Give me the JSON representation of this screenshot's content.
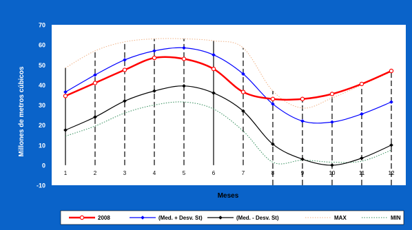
{
  "chart_data": {
    "type": "line",
    "xlabel": "Meses",
    "ylabel": "Millones de metros cúbicos",
    "x": [
      1,
      2,
      3,
      4,
      5,
      6,
      7,
      8,
      9,
      10,
      11,
      12
    ],
    "ylim": [
      -10,
      70
    ],
    "yticks": [
      -10,
      0,
      10,
      20,
      30,
      40,
      50,
      60,
      70
    ],
    "grid": false,
    "legend_position": "bottom",
    "series": [
      {
        "name": "2008",
        "color": "#ff0000",
        "style": "solid-thick",
        "marker": "circle-open",
        "values": [
          34.5,
          41,
          47.5,
          53.5,
          53,
          48,
          36.5,
          33,
          33,
          35.5,
          40.5,
          47
        ]
      },
      {
        "name": "(Med. + Desv. St)",
        "color": "#0000ff",
        "style": "solid",
        "marker": "diamond",
        "values": [
          36.5,
          45,
          52.5,
          57,
          58.5,
          55,
          45.5,
          30.5,
          22,
          21.5,
          25.5,
          31.5
        ]
      },
      {
        "name": "(Med. - Desv. St)",
        "color": "#000000",
        "style": "solid",
        "marker": "diamond",
        "values": [
          17.5,
          24,
          32,
          37,
          39.5,
          36,
          27,
          10.5,
          3,
          0,
          3.5,
          10
        ]
      },
      {
        "name": "MAX",
        "color": "#f0b184",
        "style": "dotted",
        "marker": "none",
        "values": [
          48.5,
          57,
          61.5,
          63,
          63,
          62,
          58.5,
          37,
          28.5,
          33.5,
          40,
          46.5
        ]
      },
      {
        "name": "MIN",
        "color": "#2e8b57",
        "style": "dotted",
        "marker": "none",
        "values": [
          14.5,
          19.5,
          26,
          30,
          31.5,
          28,
          17,
          1.5,
          2.5,
          1.5,
          2,
          7.5
        ]
      }
    ],
    "dashed_verticals": [
      {
        "x": 1,
        "from": 0,
        "to": 48.5,
        "style": "solid"
      },
      {
        "x": 2,
        "from": 0,
        "to": 57,
        "style": "dashed"
      },
      {
        "x": 3,
        "from": 0,
        "to": 61.5,
        "style": "dashed"
      },
      {
        "x": 4,
        "from": 0,
        "to": 63,
        "style": "dashed"
      },
      {
        "x": 5,
        "from": 0,
        "to": 63,
        "style": "dashed"
      },
      {
        "x": 6,
        "from": 0,
        "to": 62,
        "style": "solid"
      },
      {
        "x": 7,
        "from": 0,
        "to": 58.5,
        "style": "dashed"
      },
      {
        "x": 8,
        "from": -10,
        "to": 37,
        "style": "dashed"
      },
      {
        "x": 9,
        "from": -10,
        "to": 33,
        "style": "dashed"
      },
      {
        "x": 10,
        "from": -10,
        "to": 35.5,
        "style": "dashed"
      },
      {
        "x": 11,
        "from": -10,
        "to": 40.5,
        "style": "dashed"
      },
      {
        "x": 12,
        "from": -10,
        "to": 47,
        "style": "dashed"
      }
    ]
  }
}
